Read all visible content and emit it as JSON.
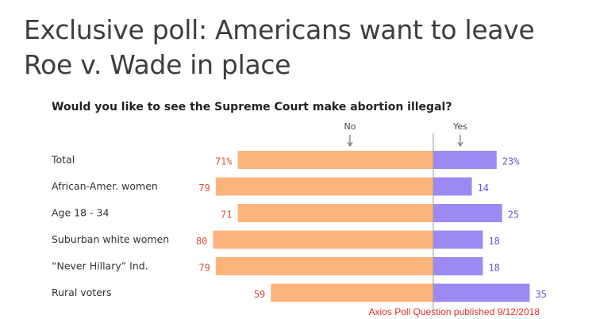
{
  "headline": "Exclusive poll: Americans want to leave Roe v. Wade in place",
  "chart_data": {
    "type": "bar",
    "orientation": "diverging-horizontal",
    "title": "Would you like to see the Supreme Court make abortion illegal?",
    "column_labels": {
      "no": "No",
      "yes": "Yes"
    },
    "categories": [
      "Total",
      "African-Amer. women",
      "Age 18 - 34",
      "Suburban white women",
      "“Never Hillary” Ind.",
      "Rural voters"
    ],
    "series": [
      {
        "name": "No",
        "color": "#fcb47c",
        "label_color": "#d9533a",
        "values": [
          71,
          79,
          71,
          80,
          79,
          59
        ],
        "labels": [
          "71%",
          "79",
          "71",
          "80",
          "79",
          "59"
        ]
      },
      {
        "name": "Yes",
        "color": "#9d8bf5",
        "label_color": "#6a55d0",
        "values": [
          23,
          14,
          25,
          18,
          18,
          35
        ],
        "labels": [
          "23%",
          "14",
          "25",
          "18",
          "18",
          "35"
        ]
      }
    ],
    "xlim": [
      -80,
      35
    ]
  },
  "source": {
    "text": "Axios Poll Question published 9/12/2018",
    "color": "#e0302a"
  },
  "axis_color": "#999999"
}
